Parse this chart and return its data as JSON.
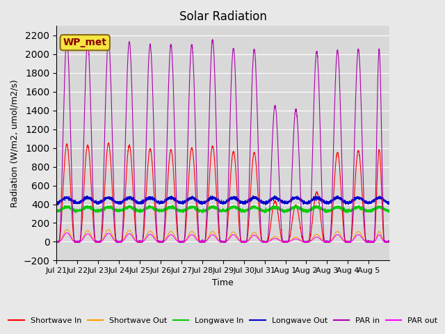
{
  "title": "Solar Radiation",
  "xlabel": "Time",
  "ylabel": "Radiation (W/m2, umol/m2/s)",
  "ylim": [
    -200,
    2300
  ],
  "yticks": [
    -200,
    0,
    200,
    400,
    600,
    800,
    1000,
    1200,
    1400,
    1600,
    1800,
    2000,
    2200
  ],
  "background_color": "#e8e8e8",
  "plot_bg_color": "#d8d8d8",
  "station_label": "WP_met",
  "legend_entries": [
    "Shortwave In",
    "Shortwave Out",
    "Longwave In",
    "Longwave Out",
    "PAR in",
    "PAR out"
  ],
  "legend_colors": [
    "#ff0000",
    "#ff9900",
    "#00cc00",
    "#0000cc",
    "#aa00aa",
    "#ff00ff"
  ],
  "n_days": 16,
  "xtick_labels": [
    "Jul 21",
    "Jul 22",
    "Jul 23",
    "Jul 24",
    "Jul 25",
    "Jul 26",
    "Jul 27",
    "Jul 28",
    "Jul 29",
    "Jul 30",
    "Jul 31",
    "Aug 1",
    "Aug 2",
    "Aug 3",
    "Aug 4",
    "Aug 5"
  ],
  "shortwave_in_peaks": [
    1040,
    1030,
    1050,
    1030,
    990,
    980,
    1000,
    1020,
    960,
    950,
    430,
    390,
    530,
    950,
    970,
    980
  ],
  "par_in_peaks": [
    2150,
    2130,
    2150,
    2130,
    2100,
    2100,
    2100,
    2150,
    2060,
    2050,
    1450,
    1410,
    2030,
    2040,
    2050,
    2050
  ],
  "shortwave_out_peaks": [
    130,
    120,
    130,
    120,
    115,
    110,
    110,
    110,
    105,
    100,
    55,
    50,
    80,
    110,
    110,
    110
  ],
  "par_out_peaks": [
    95,
    85,
    90,
    85,
    80,
    75,
    75,
    75,
    75,
    70,
    35,
    30,
    50,
    75,
    75,
    75
  ],
  "longwave_in_base": 330,
  "longwave_out_base": 415,
  "points_per_day": 288
}
